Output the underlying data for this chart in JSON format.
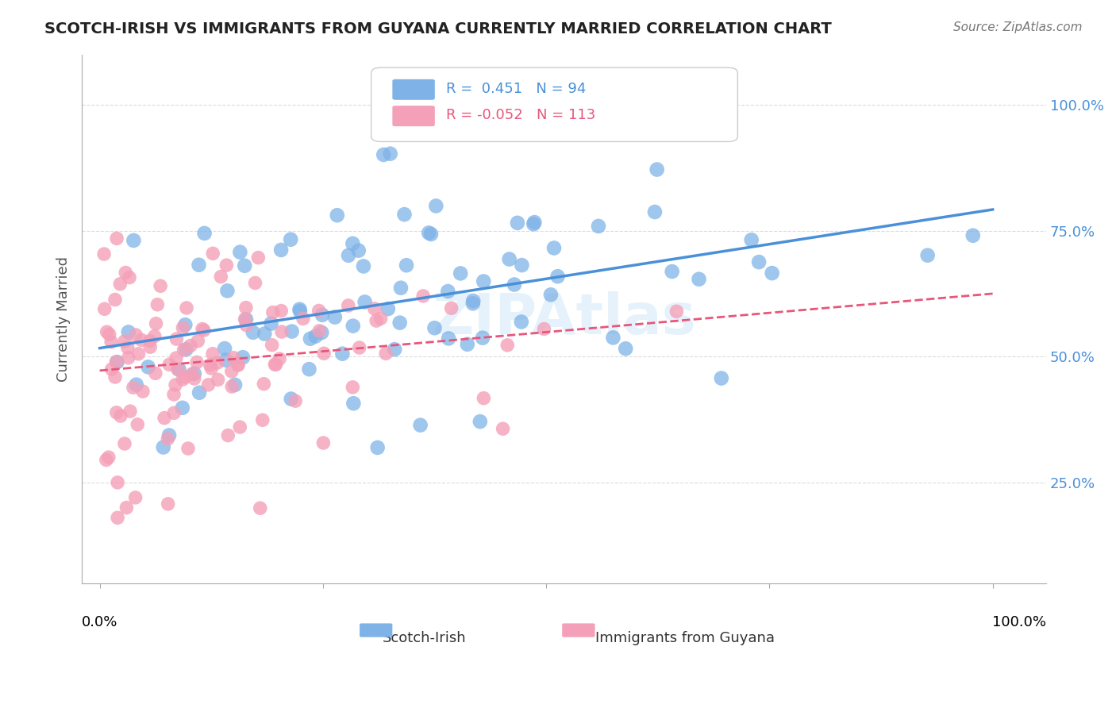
{
  "title": "SCOTCH-IRISH VS IMMIGRANTS FROM GUYANA CURRENTLY MARRIED CORRELATION CHART",
  "source": "Source: ZipAtlas.com",
  "ylabel": "Currently Married",
  "y_tick_labels": [
    "25.0%",
    "50.0%",
    "75.0%",
    "100.0%"
  ],
  "y_tick_positions": [
    0.25,
    0.5,
    0.75,
    1.0
  ],
  "legend_label1": "Scotch-Irish",
  "legend_label2": "Immigrants from Guyana",
  "r1": 0.451,
  "n1": 94,
  "r2": -0.052,
  "n2": 113,
  "r1_color": "#4a90d9",
  "r2_color": "#e8567a",
  "color_blue": "#7fb3e8",
  "color_pink": "#f4a0b8",
  "background_color": "#ffffff",
  "grid_color": "#cccccc"
}
